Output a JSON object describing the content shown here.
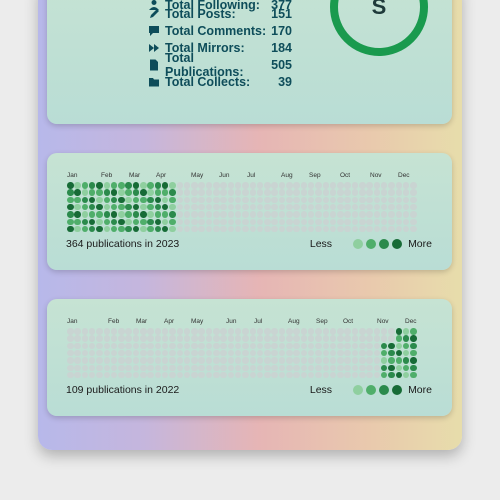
{
  "stats": {
    "rows": [
      {
        "label": "Total Following:",
        "value": "377",
        "icon": "user-icon"
      },
      {
        "label": "Total Posts:",
        "value": "151",
        "icon": "pencil-icon"
      },
      {
        "label": "Total Comments:",
        "value": "170",
        "icon": "comment-icon"
      },
      {
        "label": "Total Mirrors:",
        "value": "184",
        "icon": "mirror-icon"
      },
      {
        "label": "Total Publications:",
        "value": "505",
        "icon": "document-icon"
      },
      {
        "label": "Total Collects:",
        "value": "39",
        "icon": "folder-icon"
      }
    ],
    "grade": "S",
    "ring_color": "#1a9a4e"
  },
  "heatmaps": [
    {
      "months": [
        "Jan",
        "Feb",
        "Mar",
        "Apr",
        "May",
        "Jun",
        "Jul",
        "Aug",
        "Sep",
        "Oct",
        "Nov",
        "Dec"
      ],
      "caption": "364 publications in 2023",
      "active_from_week": 0,
      "active_to_week": 16
    },
    {
      "months": [
        "Jan",
        "Feb",
        "Mar",
        "Apr",
        "May",
        "Jun",
        "Jul",
        "Aug",
        "Sep",
        "Oct",
        "Nov",
        "Dec"
      ],
      "caption": "109 publications in 2022",
      "active_from_week": 47,
      "active_to_week": 52
    }
  ],
  "legend": {
    "less": "Less",
    "more": "More",
    "colors": [
      "#8fcf9f",
      "#4fae6a",
      "#2b8a4c",
      "#176b36"
    ]
  },
  "colors": {
    "empty": "#c9d4d2",
    "text": "#0e4d5a"
  }
}
